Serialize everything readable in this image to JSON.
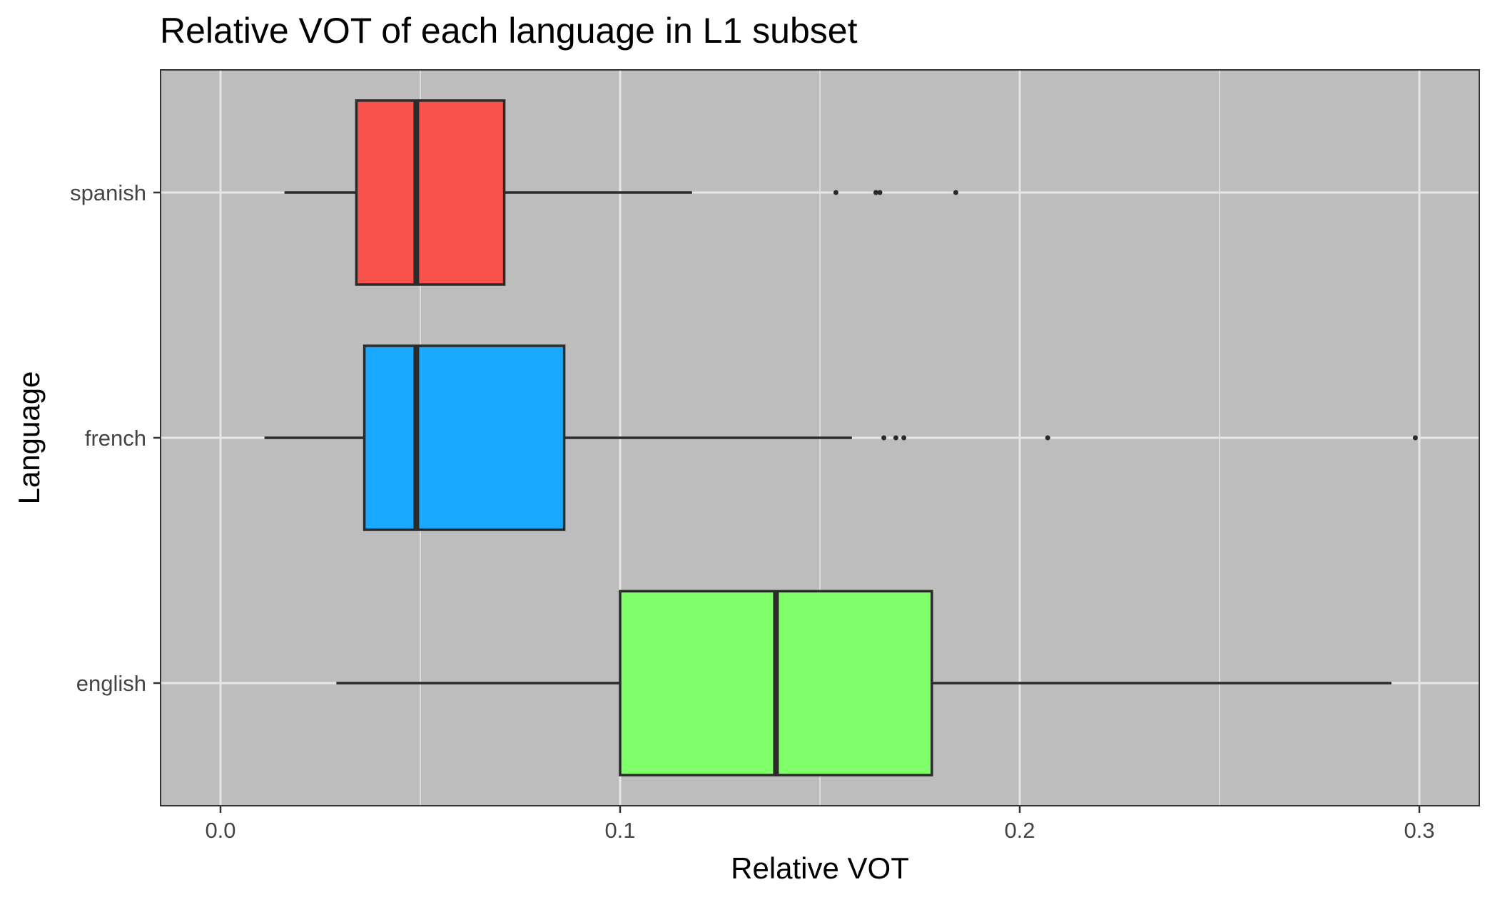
{
  "chart_data": {
    "type": "boxplot",
    "orientation": "horizontal",
    "title": "Relative VOT of each language in L1 subset",
    "xlabel": "Relative VOT",
    "ylabel": "Language",
    "xlim": [
      -0.015,
      0.315
    ],
    "x_ticks": [
      0.0,
      0.1,
      0.2,
      0.3
    ],
    "x_tick_labels": [
      "0.0",
      "0.1",
      "0.2",
      "0.3"
    ],
    "x_minor_gridlines": [
      0.05,
      0.15,
      0.25
    ],
    "categories": [
      "spanish",
      "french",
      "english"
    ],
    "grid": true,
    "legend": "none",
    "colors": {
      "panel_background": "#bdbdbd",
      "grid": "#e6e6e6",
      "outline": "#2b2b2b"
    },
    "series": [
      {
        "category": "spanish",
        "fill": "#f8524a",
        "whisker_low": 0.016,
        "q1": 0.034,
        "median": 0.049,
        "q3": 0.071,
        "whisker_high": 0.118,
        "outliers": [
          0.154,
          0.164,
          0.165,
          0.184
        ]
      },
      {
        "category": "french",
        "fill": "#1ba9ff",
        "whisker_low": 0.011,
        "q1": 0.036,
        "median": 0.049,
        "q3": 0.086,
        "whisker_high": 0.158,
        "outliers": [
          0.166,
          0.169,
          0.171,
          0.207,
          0.299
        ]
      },
      {
        "category": "english",
        "fill": "#80ff6a",
        "whisker_low": 0.029,
        "q1": 0.1,
        "median": 0.139,
        "q3": 0.178,
        "whisker_high": 0.293,
        "outliers": []
      }
    ]
  }
}
